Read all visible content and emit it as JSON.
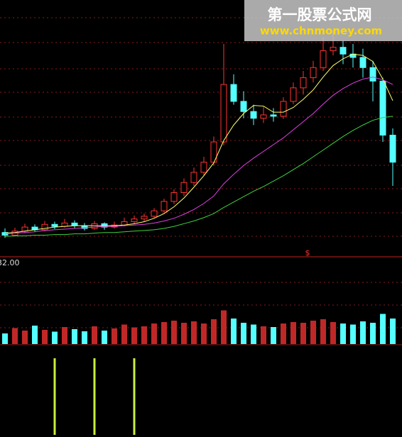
{
  "chart_data": {
    "type": "candlestick",
    "ylim": [
      32,
      70
    ],
    "yticks": [
      {
        "value": 32,
        "label": "32.00"
      }
    ],
    "up_color": "#ff3232",
    "down_color": "#54ffff",
    "ohlc": [
      [
        35.6,
        36.2,
        34.8,
        35.2
      ],
      [
        35.2,
        36.3,
        35.0,
        35.8
      ],
      [
        35.8,
        36.9,
        35.5,
        36.4
      ],
      [
        36.4,
        36.8,
        35.7,
        36.0
      ],
      [
        36.0,
        37.3,
        35.8,
        36.8
      ],
      [
        36.8,
        37.2,
        36.1,
        36.5
      ],
      [
        36.5,
        37.6,
        36.3,
        37.0
      ],
      [
        37.0,
        37.4,
        36.2,
        36.6
      ],
      [
        36.6,
        37.0,
        35.9,
        36.2
      ],
      [
        36.2,
        37.3,
        36.0,
        36.9
      ],
      [
        36.9,
        37.1,
        36.0,
        36.4
      ],
      [
        36.4,
        37.2,
        36.2,
        36.7
      ],
      [
        36.7,
        37.8,
        36.5,
        37.2
      ],
      [
        37.2,
        38.1,
        36.9,
        37.6
      ],
      [
        37.6,
        38.4,
        37.2,
        38.0
      ],
      [
        38.0,
        39.2,
        37.7,
        38.8
      ],
      [
        38.8,
        40.6,
        38.5,
        40.2
      ],
      [
        40.2,
        42.0,
        39.8,
        41.5
      ],
      [
        41.5,
        43.6,
        41.0,
        43.0
      ],
      [
        43.0,
        45.2,
        42.5,
        44.5
      ],
      [
        44.5,
        46.8,
        44.0,
        46.0
      ],
      [
        46.0,
        49.8,
        45.5,
        49.0
      ],
      [
        49.0,
        63.5,
        48.5,
        57.5
      ],
      [
        57.5,
        59.0,
        54.5,
        55.0
      ],
      [
        55.0,
        56.5,
        52.5,
        53.5
      ],
      [
        53.5,
        54.5,
        51.5,
        52.5
      ],
      [
        52.5,
        54.2,
        51.8,
        53.0
      ],
      [
        53.0,
        54.0,
        52.0,
        52.8
      ],
      [
        52.8,
        55.6,
        52.4,
        55.0
      ],
      [
        55.0,
        57.8,
        54.6,
        57.0
      ],
      [
        57.0,
        59.5,
        56.0,
        58.5
      ],
      [
        58.5,
        61.0,
        57.8,
        60.0
      ],
      [
        60.0,
        64.5,
        59.5,
        62.5
      ],
      [
        62.5,
        65.5,
        61.8,
        63.0
      ],
      [
        63.0,
        64.0,
        60.5,
        62.0
      ],
      [
        62.0,
        63.5,
        60.0,
        61.5
      ],
      [
        61.5,
        62.8,
        58.5,
        60.0
      ],
      [
        60.0,
        61.0,
        55.0,
        58.0
      ],
      [
        58.0,
        58.5,
        49.0,
        50.0
      ],
      [
        50.0,
        51.0,
        42.5,
        46.0
      ]
    ],
    "lines": [
      {
        "color": "#ffff66",
        "values": [
          35.5,
          35.6,
          35.8,
          36.0,
          36.2,
          36.4,
          36.5,
          36.6,
          36.6,
          36.6,
          36.6,
          36.6,
          36.7,
          36.9,
          37.2,
          37.7,
          38.4,
          39.4,
          40.7,
          42.3,
          44.0,
          45.9,
          49.2,
          51.5,
          53.2,
          54.4,
          54.3,
          53.4,
          53.4,
          54.1,
          55.3,
          56.7,
          58.6,
          60.3,
          61.3,
          62.0,
          61.8,
          60.9,
          58.3,
          55.1
        ]
      },
      {
        "color": "#e040e0",
        "values": [
          35.4,
          35.5,
          35.6,
          35.7,
          35.9,
          36.0,
          36.1,
          36.2,
          36.3,
          36.4,
          36.5,
          36.5,
          36.6,
          36.7,
          36.8,
          37.0,
          37.3,
          37.7,
          38.3,
          39.0,
          39.9,
          41.0,
          42.8,
          44.2,
          45.5,
          46.6,
          47.6,
          48.6,
          49.6,
          50.8,
          52.0,
          53.2,
          54.6,
          55.9,
          56.9,
          57.7,
          58.3,
          58.6,
          58.2,
          57.5
        ]
      },
      {
        "color": "#40d040",
        "values": [
          35.0,
          35.1,
          35.1,
          35.2,
          35.2,
          35.3,
          35.3,
          35.4,
          35.4,
          35.5,
          35.6,
          35.6,
          35.7,
          35.8,
          35.9,
          36.0,
          36.2,
          36.5,
          36.9,
          37.3,
          37.8,
          38.4,
          39.3,
          40.1,
          40.9,
          41.7,
          42.4,
          43.2,
          44.0,
          44.9,
          45.8,
          46.8,
          47.8,
          48.8,
          49.8,
          50.7,
          51.5,
          52.2,
          52.6,
          52.8
        ]
      }
    ],
    "volume": {
      "ylim": [
        0,
        100
      ],
      "values": [
        30,
        45,
        38,
        52,
        40,
        35,
        48,
        42,
        36,
        50,
        38,
        44,
        55,
        47,
        50,
        58,
        62,
        66,
        60,
        64,
        58,
        70,
        95,
        72,
        60,
        55,
        50,
        48,
        58,
        62,
        60,
        66,
        70,
        62,
        58,
        55,
        64,
        60,
        85,
        72
      ]
    },
    "signals": {
      "color": "#c8f03c",
      "indices": [
        5,
        9,
        13
      ]
    },
    "marker": "$",
    "watermark": {
      "title": "第一股票公式网",
      "url": "www.chnmoney.com"
    }
  }
}
